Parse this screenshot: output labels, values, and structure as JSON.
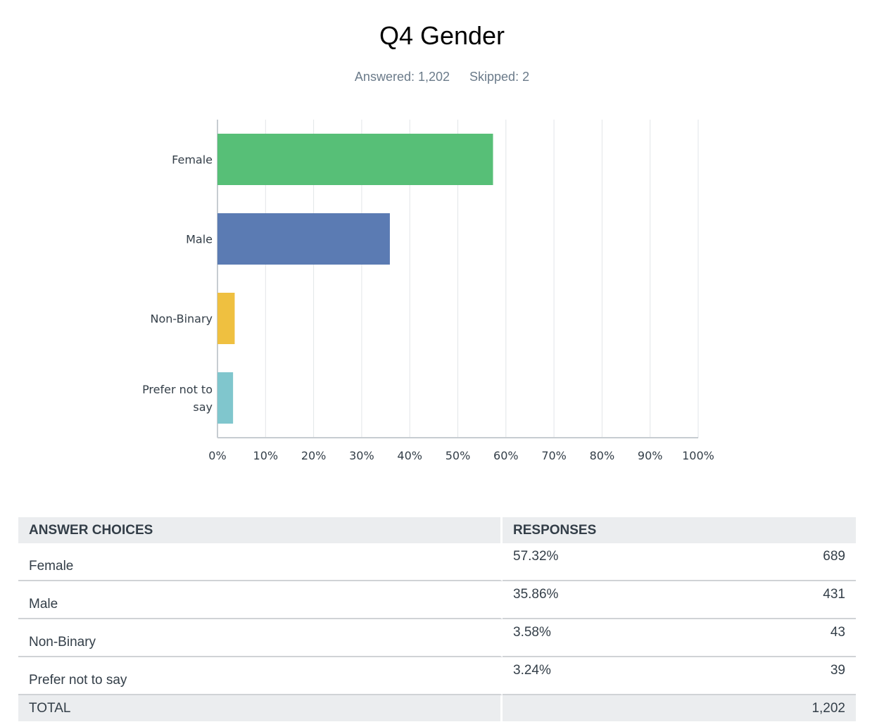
{
  "header": {
    "title": "Q4 Gender",
    "answered": "Answered: 1,202",
    "skipped": "Skipped: 2"
  },
  "chart_data": {
    "type": "bar",
    "orientation": "horizontal",
    "categories": [
      "Female",
      "Male",
      "Non-Binary",
      "Prefer not to say"
    ],
    "category_lines": [
      [
        "Female"
      ],
      [
        "Male"
      ],
      [
        "Non-Binary"
      ],
      [
        "Prefer not to",
        "say"
      ]
    ],
    "values": [
      57.32,
      35.86,
      3.58,
      3.24
    ],
    "colors": [
      "#57bf77",
      "#5b7bb3",
      "#efc040",
      "#80c6cd"
    ],
    "xlim": [
      0,
      100
    ],
    "ticks": [
      "0%",
      "10%",
      "20%",
      "30%",
      "40%",
      "50%",
      "60%",
      "70%",
      "80%",
      "90%",
      "100%"
    ],
    "grid": true
  },
  "table": {
    "headers": [
      "ANSWER CHOICES",
      "RESPONSES"
    ],
    "rows": [
      {
        "choice": "Female",
        "percent": "57.32%",
        "count": "689"
      },
      {
        "choice": "Male",
        "percent": "35.86%",
        "count": "431"
      },
      {
        "choice": "Non-Binary",
        "percent": "3.58%",
        "count": "43"
      },
      {
        "choice": "Prefer not to say",
        "percent": "3.24%",
        "count": "39"
      }
    ],
    "total_label": "TOTAL",
    "total_value": "1,202"
  }
}
